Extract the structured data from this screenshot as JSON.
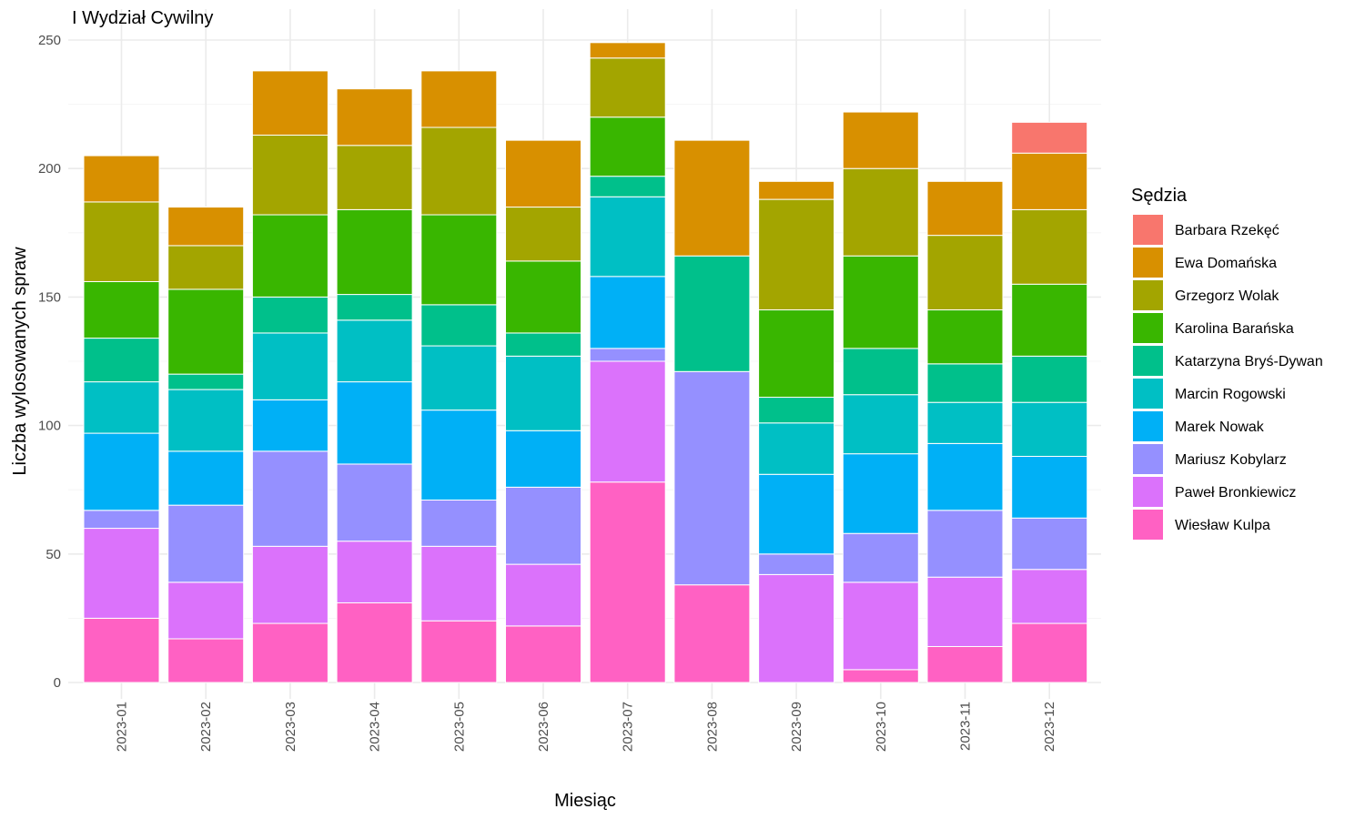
{
  "chart_data": {
    "type": "bar",
    "stacked": true,
    "title": "I Wydział Cywilny",
    "xlabel": "Miesiąc",
    "ylabel": "Liczba wylosowanych spraw",
    "ylim": [
      0,
      250
    ],
    "yticks": [
      0,
      50,
      100,
      150,
      200,
      250
    ],
    "grid": true,
    "legend_title": "Sędzia",
    "legend_position": "right",
    "categories": [
      "2023-01",
      "2023-02",
      "2023-03",
      "2023-04",
      "2023-05",
      "2023-06",
      "2023-07",
      "2023-08",
      "2023-09",
      "2023-10",
      "2023-11",
      "2023-12"
    ],
    "series": [
      {
        "name": "Wiesław Kulpa",
        "color": "#FF61C3",
        "values": [
          25,
          17,
          23,
          31,
          24,
          22,
          78,
          38,
          0,
          5,
          14,
          23
        ]
      },
      {
        "name": "Paweł Bronkiewicz",
        "color": "#DB72FB",
        "values": [
          35,
          22,
          30,
          24,
          29,
          24,
          47,
          0,
          42,
          34,
          27,
          21
        ]
      },
      {
        "name": "Mariusz Kobylarz",
        "color": "#9590FF",
        "values": [
          7,
          30,
          37,
          30,
          18,
          30,
          5,
          83,
          8,
          19,
          26,
          20
        ]
      },
      {
        "name": "Marek Nowak",
        "color": "#00B0F6",
        "values": [
          30,
          21,
          20,
          32,
          35,
          22,
          28,
          0,
          31,
          31,
          26,
          24
        ]
      },
      {
        "name": "Marcin Rogowski",
        "color": "#00BFC4",
        "values": [
          20,
          24,
          26,
          24,
          25,
          29,
          31,
          0,
          20,
          23,
          16,
          21
        ]
      },
      {
        "name": "Katarzyna Bryś-Dywan",
        "color": "#00C08B",
        "values": [
          17,
          6,
          14,
          10,
          16,
          9,
          8,
          45,
          10,
          18,
          15,
          18
        ]
      },
      {
        "name": "Karolina Barańska",
        "color": "#39B600",
        "values": [
          22,
          33,
          32,
          33,
          35,
          28,
          23,
          0,
          34,
          36,
          21,
          28
        ]
      },
      {
        "name": "Grzegorz Wolak",
        "color": "#A3A500",
        "values": [
          31,
          17,
          31,
          25,
          34,
          21,
          23,
          0,
          43,
          34,
          29,
          29
        ]
      },
      {
        "name": "Ewa Domańska",
        "color": "#D89000",
        "values": [
          18,
          15,
          25,
          22,
          22,
          26,
          6,
          45,
          7,
          22,
          21,
          22
        ]
      },
      {
        "name": "Barbara Rzekęć",
        "color": "#F8766D",
        "values": [
          0,
          0,
          0,
          0,
          0,
          0,
          0,
          0,
          0,
          0,
          0,
          12
        ]
      }
    ],
    "legend_order": [
      "Barbara Rzekęć",
      "Ewa Domańska",
      "Grzegorz Wolak",
      "Karolina Barańska",
      "Katarzyna Bryś-Dywan",
      "Marcin Rogowski",
      "Marek Nowak",
      "Mariusz Kobylarz",
      "Paweł Bronkiewicz",
      "Wiesław Kulpa"
    ]
  }
}
